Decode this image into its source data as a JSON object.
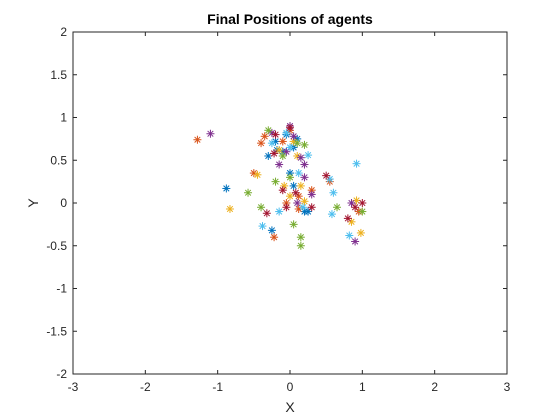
{
  "chart_data": {
    "type": "scatter",
    "title": "Final Positions of agents",
    "xlabel": "X",
    "ylabel": "Y",
    "xlim": [
      -3,
      3
    ],
    "ylim": [
      -2,
      2
    ],
    "xticks": [
      "-3",
      "-2",
      "-1",
      "0",
      "1",
      "2",
      "3"
    ],
    "yticks": [
      "-2",
      "-1.5",
      "-1",
      "-0.5",
      "0",
      "0.5",
      "1",
      "1.5",
      "2"
    ],
    "xtick_values": [
      -3,
      -2,
      -1,
      0,
      1,
      2,
      3
    ],
    "ytick_values": [
      -2,
      -1.5,
      -1,
      -0.5,
      0,
      0.5,
      1,
      1.5,
      2
    ],
    "grid": false,
    "marker": "asterisk",
    "colors": [
      "#0072BD",
      "#D95319",
      "#EDB120",
      "#7E2F8E",
      "#77AC30",
      "#4DBEEE",
      "#A2142F"
    ],
    "series": [
      {
        "color": "#0072BD",
        "points": [
          [
            -0.88,
            0.17
          ],
          [
            -0.3,
            0.55
          ],
          [
            -0.2,
            0.72
          ],
          [
            -0.05,
            0.8
          ],
          [
            0.05,
            0.65
          ],
          [
            -0.25,
            -0.32
          ],
          [
            0.0,
            0.35
          ],
          [
            0.2,
            -0.1
          ],
          [
            -0.1,
            0.6
          ],
          [
            0.1,
            0.75
          ],
          [
            0.05,
            0.2
          ],
          [
            -0.18,
            0.62
          ],
          [
            0.25,
            -0.1
          ]
        ]
      },
      {
        "color": "#D95319",
        "points": [
          [
            -1.28,
            0.74
          ],
          [
            -0.35,
            0.78
          ],
          [
            -0.5,
            0.35
          ],
          [
            -0.4,
            0.7
          ],
          [
            0.0,
            0.85
          ],
          [
            0.12,
            0.08
          ],
          [
            0.12,
            -0.07
          ],
          [
            -0.22,
            -0.4
          ],
          [
            0.55,
            0.25
          ],
          [
            -0.05,
            0.0
          ],
          [
            0.3,
            0.15
          ],
          [
            0.95,
            -0.1
          ],
          [
            -0.1,
            0.72
          ]
        ]
      },
      {
        "color": "#EDB120",
        "points": [
          [
            -0.83,
            -0.07
          ],
          [
            -0.45,
            0.33
          ],
          [
            0.05,
            0.72
          ],
          [
            -0.15,
            0.62
          ],
          [
            0.0,
            0.08
          ],
          [
            0.15,
            0.2
          ],
          [
            0.92,
            0.03
          ],
          [
            0.98,
            -0.35
          ],
          [
            -0.08,
            0.2
          ],
          [
            0.2,
            0.02
          ],
          [
            0.85,
            -0.22
          ],
          [
            0.1,
            0.55
          ]
        ]
      },
      {
        "color": "#7E2F8E",
        "points": [
          [
            -1.1,
            0.81
          ],
          [
            -0.25,
            0.82
          ],
          [
            0.0,
            0.9
          ],
          [
            0.15,
            0.53
          ],
          [
            0.2,
            0.3
          ],
          [
            -0.05,
            0.6
          ],
          [
            0.1,
            0.0
          ],
          [
            0.3,
            0.1
          ],
          [
            0.9,
            -0.45
          ],
          [
            0.85,
            0.0
          ],
          [
            -0.15,
            0.45
          ],
          [
            0.05,
            0.78
          ],
          [
            0.2,
            0.45
          ]
        ]
      },
      {
        "color": "#77AC30",
        "points": [
          [
            -0.58,
            0.12
          ],
          [
            -0.3,
            0.85
          ],
          [
            0.1,
            0.7
          ],
          [
            -0.1,
            0.55
          ],
          [
            0.15,
            -0.4
          ],
          [
            0.15,
            -0.5
          ],
          [
            0.0,
            0.3
          ],
          [
            0.65,
            -0.05
          ],
          [
            1.0,
            -0.1
          ],
          [
            -0.4,
            -0.05
          ],
          [
            0.2,
            0.68
          ],
          [
            -0.2,
            0.25
          ],
          [
            0.05,
            -0.25
          ]
        ]
      },
      {
        "color": "#4DBEEE",
        "points": [
          [
            0.92,
            0.46
          ],
          [
            -0.38,
            -0.27
          ],
          [
            -0.15,
            -0.1
          ],
          [
            -0.05,
            0.82
          ],
          [
            0.25,
            0.56
          ],
          [
            0.55,
            0.28
          ],
          [
            0.6,
            0.12
          ],
          [
            0.58,
            -0.13
          ],
          [
            0.82,
            -0.38
          ],
          [
            0.18,
            -0.05
          ],
          [
            0.12,
            0.35
          ],
          [
            -0.25,
            0.7
          ],
          [
            0.0,
            0.65
          ]
        ]
      },
      {
        "color": "#A2142F",
        "points": [
          [
            -0.32,
            -0.12
          ],
          [
            -0.1,
            0.15
          ],
          [
            0.08,
            0.12
          ],
          [
            -0.2,
            0.8
          ],
          [
            0.0,
            0.88
          ],
          [
            0.5,
            0.32
          ],
          [
            0.8,
            -0.18
          ],
          [
            0.9,
            -0.05
          ],
          [
            1.0,
            0.0
          ],
          [
            -0.05,
            -0.05
          ],
          [
            0.3,
            -0.05
          ],
          [
            -0.22,
            0.58
          ]
        ]
      }
    ]
  }
}
